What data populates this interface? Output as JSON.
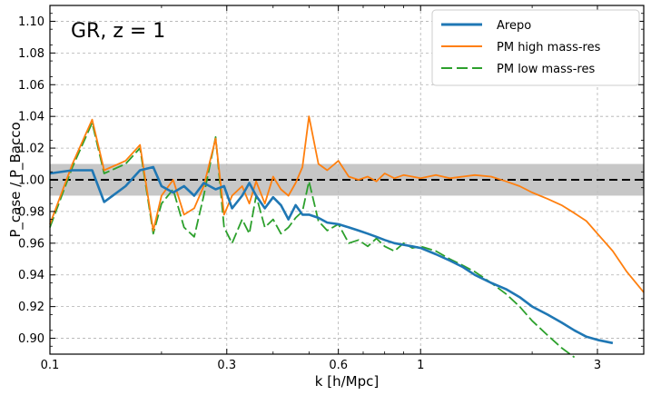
{
  "chart_data": {
    "type": "line",
    "annotation": "GR, z = 1",
    "xlabel": "k [h/Mpc]",
    "ylabel": "P_case / P_Bacco",
    "xscale": "log",
    "xlim": [
      0.1,
      4.0
    ],
    "ylim": [
      0.89,
      1.11
    ],
    "xticks": [
      0.1,
      0.3,
      0.6,
      1,
      3
    ],
    "xtick_labels": [
      "0.1",
      "0.3",
      "0.6",
      "1",
      "3"
    ],
    "yticks": [
      0.9,
      0.92,
      0.94,
      0.96,
      0.98,
      1.0,
      1.02,
      1.04,
      1.06,
      1.08,
      1.1
    ],
    "ytick_labels": [
      "0.90",
      "0.92",
      "0.94",
      "0.96",
      "0.98",
      "1.00",
      "1.02",
      "1.04",
      "1.06",
      "1.08",
      "1.10"
    ],
    "grid": true,
    "legend_position": "top-right",
    "reference_line": {
      "y": 1.0,
      "style": "dashed",
      "color": "#000000"
    },
    "band": {
      "y_low": 0.99,
      "y_high": 1.01,
      "color": "#bdbdbd"
    },
    "series": [
      {
        "name": "Arepo",
        "color": "#1f77b4",
        "style": "solid",
        "x": [
          0.1,
          0.115,
          0.13,
          0.14,
          0.16,
          0.175,
          0.19,
          0.2,
          0.215,
          0.23,
          0.245,
          0.26,
          0.28,
          0.295,
          0.31,
          0.33,
          0.345,
          0.36,
          0.38,
          0.4,
          0.42,
          0.44,
          0.46,
          0.48,
          0.5,
          0.53,
          0.56,
          0.6,
          0.64,
          0.68,
          0.72,
          0.76,
          0.8,
          0.85,
          0.9,
          0.95,
          1.0,
          1.1,
          1.2,
          1.3,
          1.4,
          1.55,
          1.7,
          1.85,
          2.0,
          2.2,
          2.4,
          2.6,
          2.8,
          3.0,
          3.3
        ],
        "y": [
          1.004,
          1.006,
          1.006,
          0.986,
          0.996,
          1.006,
          1.008,
          0.996,
          0.992,
          0.996,
          0.99,
          0.998,
          0.994,
          0.996,
          0.982,
          0.99,
          0.998,
          0.99,
          0.982,
          0.989,
          0.984,
          0.975,
          0.984,
          0.978,
          0.978,
          0.976,
          0.973,
          0.972,
          0.97,
          0.968,
          0.966,
          0.964,
          0.962,
          0.96,
          0.959,
          0.958,
          0.957,
          0.953,
          0.949,
          0.945,
          0.94,
          0.935,
          0.931,
          0.926,
          0.92,
          0.915,
          0.91,
          0.905,
          0.901,
          0.899,
          0.897
        ]
      },
      {
        "name": "PM high mass-res",
        "color": "#ff7f0e",
        "style": "solid",
        "x": [
          0.1,
          0.115,
          0.13,
          0.14,
          0.16,
          0.175,
          0.19,
          0.2,
          0.215,
          0.23,
          0.245,
          0.26,
          0.28,
          0.295,
          0.31,
          0.33,
          0.345,
          0.36,
          0.38,
          0.4,
          0.42,
          0.44,
          0.46,
          0.48,
          0.5,
          0.53,
          0.56,
          0.6,
          0.64,
          0.68,
          0.72,
          0.76,
          0.8,
          0.85,
          0.9,
          0.95,
          1.0,
          1.1,
          1.2,
          1.3,
          1.4,
          1.55,
          1.7,
          1.85,
          2.0,
          2.2,
          2.4,
          2.6,
          2.8,
          3.0,
          3.3,
          3.6,
          4.0
        ],
        "y": [
          0.972,
          1.01,
          1.038,
          1.006,
          1.012,
          1.022,
          0.968,
          0.99,
          1.0,
          0.978,
          0.982,
          0.996,
          1.026,
          0.978,
          0.99,
          0.996,
          0.985,
          0.999,
          0.985,
          1.002,
          0.994,
          0.99,
          0.998,
          1.008,
          1.04,
          1.01,
          1.006,
          1.012,
          1.002,
          1.0,
          1.002,
          0.999,
          1.004,
          1.001,
          1.003,
          1.002,
          1.001,
          1.003,
          1.001,
          1.002,
          1.003,
          1.002,
          0.999,
          0.996,
          0.992,
          0.988,
          0.984,
          0.979,
          0.974,
          0.966,
          0.955,
          0.942,
          0.929
        ]
      },
      {
        "name": "PM low mass-res",
        "color": "#2ca02c",
        "style": "dashed",
        "x": [
          0.1,
          0.115,
          0.13,
          0.14,
          0.16,
          0.175,
          0.19,
          0.2,
          0.215,
          0.23,
          0.245,
          0.26,
          0.28,
          0.295,
          0.31,
          0.33,
          0.345,
          0.36,
          0.38,
          0.4,
          0.42,
          0.44,
          0.46,
          0.48,
          0.5,
          0.53,
          0.56,
          0.6,
          0.64,
          0.68,
          0.72,
          0.76,
          0.8,
          0.85,
          0.9,
          0.95,
          1.0,
          1.1,
          1.2,
          1.3,
          1.4,
          1.55,
          1.7,
          1.85,
          2.0,
          2.2,
          2.4,
          2.6
        ],
        "y": [
          0.97,
          1.008,
          1.036,
          1.004,
          1.01,
          1.02,
          0.966,
          0.985,
          0.994,
          0.97,
          0.964,
          0.99,
          1.027,
          0.97,
          0.96,
          0.975,
          0.966,
          0.99,
          0.97,
          0.975,
          0.966,
          0.97,
          0.976,
          0.98,
          0.999,
          0.974,
          0.968,
          0.972,
          0.96,
          0.962,
          0.958,
          0.963,
          0.958,
          0.955,
          0.96,
          0.957,
          0.958,
          0.955,
          0.95,
          0.946,
          0.942,
          0.935,
          0.928,
          0.92,
          0.911,
          0.902,
          0.894,
          0.888
        ]
      }
    ]
  }
}
